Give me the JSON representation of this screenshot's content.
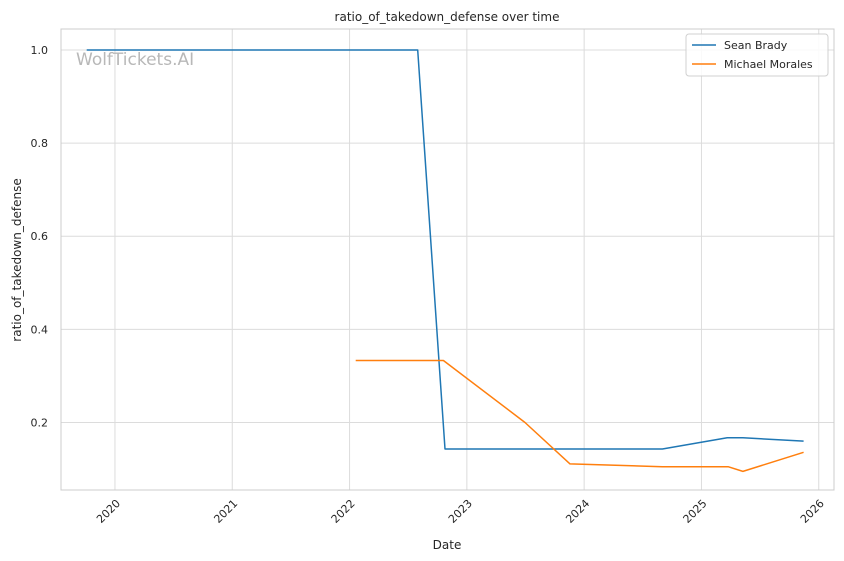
{
  "chart_data": {
    "type": "line",
    "title": "ratio_of_takedown_defense over time",
    "xlabel": "Date",
    "ylabel": "ratio_of_takedown_defense",
    "watermark": "WolfTickets.AI",
    "xlim": [
      2019.54,
      2026.13
    ],
    "ylim": [
      0.055,
      1.045
    ],
    "x_ticks": [
      "2020",
      "2021",
      "2022",
      "2023",
      "2024",
      "2025",
      "2026"
    ],
    "y_ticks": [
      "0.2",
      "0.4",
      "0.6",
      "0.8",
      "1.0"
    ],
    "grid": true,
    "legend_position": "top-right",
    "series": [
      {
        "name": "Sean Brady",
        "color": "#1f77b4",
        "x": [
          "2019-10-05",
          "2022-08-01",
          "2022-10-25",
          "2024-09-01",
          "2025-03-22",
          "2025-05-10",
          "2025-11-15"
        ],
        "y": [
          1.0,
          1.0,
          0.143,
          0.143,
          0.167,
          0.167,
          0.16
        ]
      },
      {
        "name": "Michael Morales",
        "color": "#ff7f0e",
        "x": [
          "2022-01-20",
          "2022-10-20",
          "2023-07-01",
          "2023-11-18",
          "2024-09-01",
          "2025-03-25",
          "2025-05-10",
          "2025-11-15"
        ],
        "y": [
          0.333,
          0.333,
          0.2,
          0.111,
          0.105,
          0.105,
          0.095,
          0.136
        ]
      }
    ]
  }
}
